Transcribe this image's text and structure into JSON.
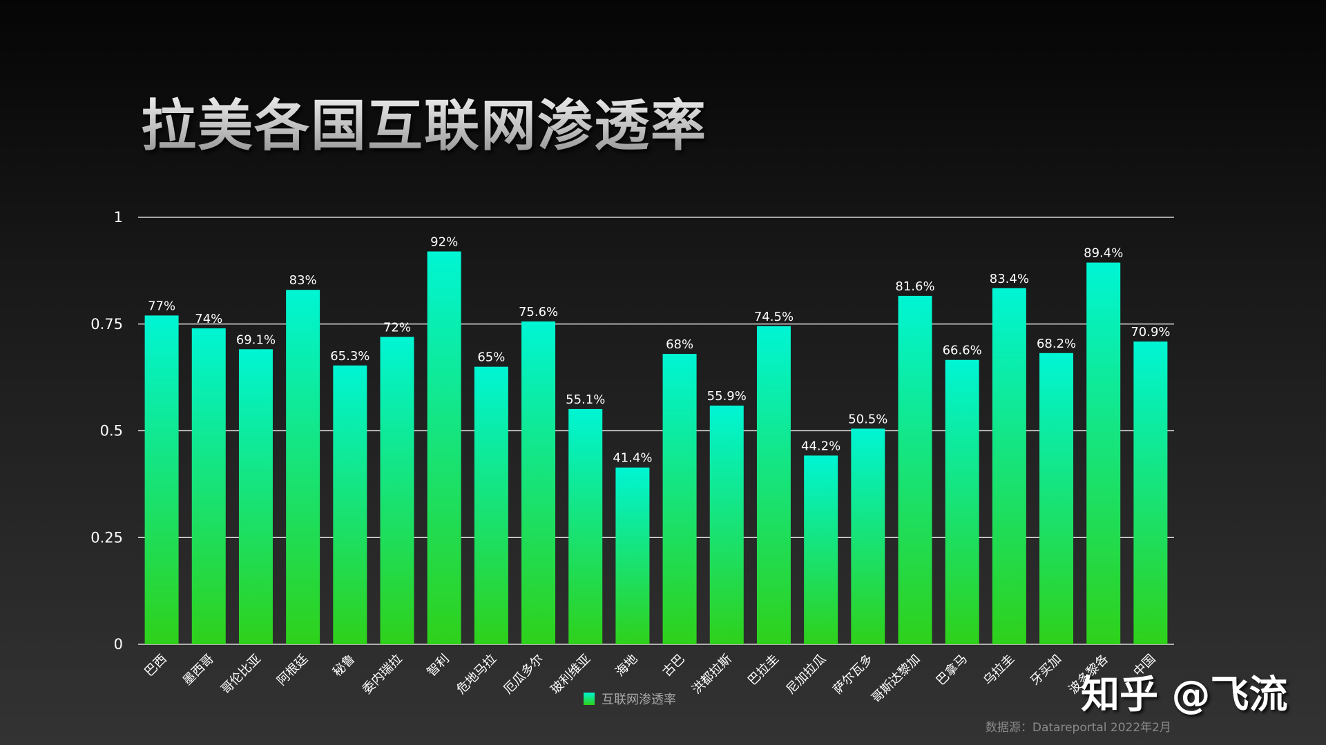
{
  "title": "拉美各国互联网渗透率",
  "chart_data": {
    "type": "bar",
    "title": "拉美各国互联网渗透率",
    "categories": [
      "巴西",
      "墨西哥",
      "哥伦比亚",
      "阿根廷",
      "秘鲁",
      "委内瑞拉",
      "智利",
      "危地马拉",
      "厄瓜多尔",
      "玻利维亚",
      "海地",
      "古巴",
      "洪都拉斯",
      "巴拉圭",
      "尼加拉瓜",
      "萨尔瓦多",
      "哥斯达黎加",
      "巴拿马",
      "乌拉圭",
      "牙买加",
      "波多黎各",
      "中国"
    ],
    "values": [
      0.77,
      0.74,
      0.691,
      0.83,
      0.653,
      0.72,
      0.92,
      0.65,
      0.756,
      0.551,
      0.414,
      0.68,
      0.559,
      0.745,
      0.442,
      0.505,
      0.816,
      0.666,
      0.834,
      0.682,
      0.894,
      0.709
    ],
    "data_labels": [
      "77%",
      "74%",
      "69.1%",
      "83%",
      "65.3%",
      "72%",
      "92%",
      "65%",
      "75.6%",
      "55.1%",
      "41.4%",
      "68%",
      "55.9%",
      "74.5%",
      "44.2%",
      "50.5%",
      "81.6%",
      "66.6%",
      "83.4%",
      "68.2%",
      "89.4%",
      "70.9%"
    ],
    "ylim": [
      0,
      1
    ],
    "yticks": [
      "0",
      "0.25",
      "0.5",
      "0.75",
      "1"
    ],
    "grid": true,
    "legend": {
      "position": "bottom",
      "entries": [
        "互联网渗透率"
      ]
    },
    "colors": {
      "bar_top": "#00f5d4",
      "bar_bottom": "#2fd11a",
      "gridline": "#ffffff"
    }
  },
  "source": "数据源：Datareportal  2022年2月",
  "watermark": "知乎 @飞流"
}
